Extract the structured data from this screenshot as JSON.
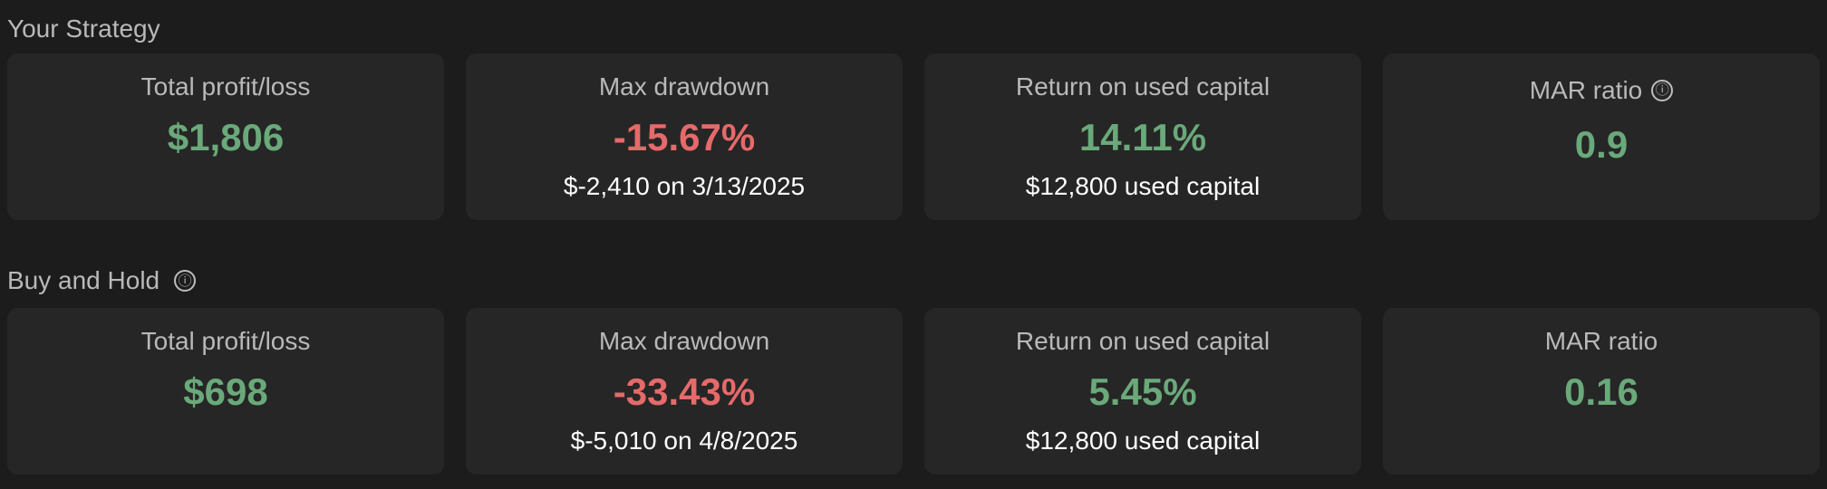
{
  "strategy": {
    "title": "Your Strategy",
    "cards": {
      "total_profit": {
        "label": "Total profit/loss",
        "value": "$1,806"
      },
      "max_drawdown": {
        "label": "Max drawdown",
        "value": "-15.67%",
        "sub": "$-2,410 on 3/13/2025"
      },
      "return_capital": {
        "label": "Return on used capital",
        "value": "14.11%",
        "sub": "$12,800 used capital"
      },
      "mar_ratio": {
        "label": "MAR ratio",
        "value": "0.9",
        "info_icon": "ⓘ"
      }
    }
  },
  "buy_and_hold": {
    "title": "Buy and Hold",
    "info_icon": "ⓘ",
    "cards": {
      "total_profit": {
        "label": "Total profit/loss",
        "value": "$698"
      },
      "max_drawdown": {
        "label": "Max drawdown",
        "value": "-33.43%",
        "sub": "$-5,010 on 4/8/2025"
      },
      "return_capital": {
        "label": "Return on used capital",
        "value": "5.45%",
        "sub": "$12,800 used capital"
      },
      "mar_ratio": {
        "label": "MAR ratio",
        "value": "0.16"
      }
    }
  },
  "colors": {
    "background": "#1c1c1c",
    "card": "#262626",
    "positive": "#6aa97a",
    "negative": "#e56a6a",
    "label": "#b9b9b9",
    "subtext": "#ffffff"
  }
}
